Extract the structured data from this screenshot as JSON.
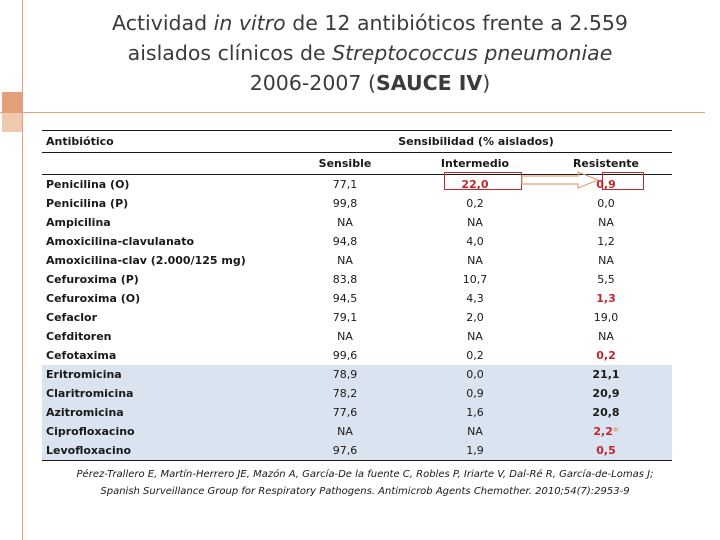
{
  "title": {
    "line1_pre": "Actividad ",
    "line1_italic": "in vitro",
    "line1_post": " de 12 antibióticos frente a 2.559",
    "line2_pre": "aislados clínicos de ",
    "line2_italic": "Streptococcus pneumoniae",
    "line3_pre": "2006-2007 (",
    "line3_bold": "SAUCE IV",
    "line3_post": ")"
  },
  "table": {
    "header_antibiotic": "Antibiótico",
    "header_group": "Sensibilidad  (% aislados)",
    "col_sensible": "Sensible",
    "col_intermedio": "Intermedio",
    "col_resistente": "Resistente",
    "rows": [
      {
        "name": "Penicilina (O)",
        "s": "77,1",
        "i": "22,0",
        "r": "0,9"
      },
      {
        "name": "Penicilina (P)",
        "s": "99,8",
        "i": "0,2",
        "r": "0,0"
      },
      {
        "name": "Ampicilina",
        "s": "NA",
        "i": "NA",
        "r": "NA"
      },
      {
        "name": "Amoxicilina-clavulanato",
        "s": "94,8",
        "i": "4,0",
        "r": "1,2"
      },
      {
        "name": "Amoxicilina-clav (2.000/125 mg)",
        "s": "NA",
        "i": "NA",
        "r": "NA"
      },
      {
        "name": "Cefuroxima (P)",
        "s": "83,8",
        "i": "10,7",
        "r": "5,5"
      },
      {
        "name": "Cefuroxima (O)",
        "s": "94,5",
        "i": "4,3",
        "r": "1,3"
      },
      {
        "name": "Cefaclor",
        "s": "79,1",
        "i": "2,0",
        "r": "19,0"
      },
      {
        "name": "Cefditoren",
        "s": "NA",
        "i": "NA",
        "r": "NA"
      },
      {
        "name": "Cefotaxima",
        "s": "99,6",
        "i": "0,2",
        "r": "0,2"
      },
      {
        "name": "Eritromicina",
        "s": "78,9",
        "i": "0,0",
        "r": "21,1"
      },
      {
        "name": "Claritromicina",
        "s": "78,2",
        "i": "0,9",
        "r": "20,9"
      },
      {
        "name": "Azitromicina",
        "s": "77,6",
        "i": "1,6",
        "r": "20,8"
      },
      {
        "name": "Ciprofloxacino",
        "s": "NA",
        "i": "NA",
        "r": "2,2",
        "r_mark": "*"
      },
      {
        "name": "Levofloxacino",
        "s": "97,6",
        "i": "1,9",
        "r": "0,5"
      }
    ]
  },
  "citation": {
    "line1": "Pérez-Trallero E, Martín-Herrero JE, Mazón A, García-De la fuente C, Robles P, Iriarte V, Dal-Ré R, García-de-Lomas J;",
    "line2": "Spanish Surveillance Group for Respiratory Pathogens. Antimicrob Agents Chemother. 2010;54(7):2953-9"
  },
  "colors": {
    "accent": "#e3a07a",
    "highlight_red": "#c0262c",
    "row_blue": "#dae3f0"
  }
}
